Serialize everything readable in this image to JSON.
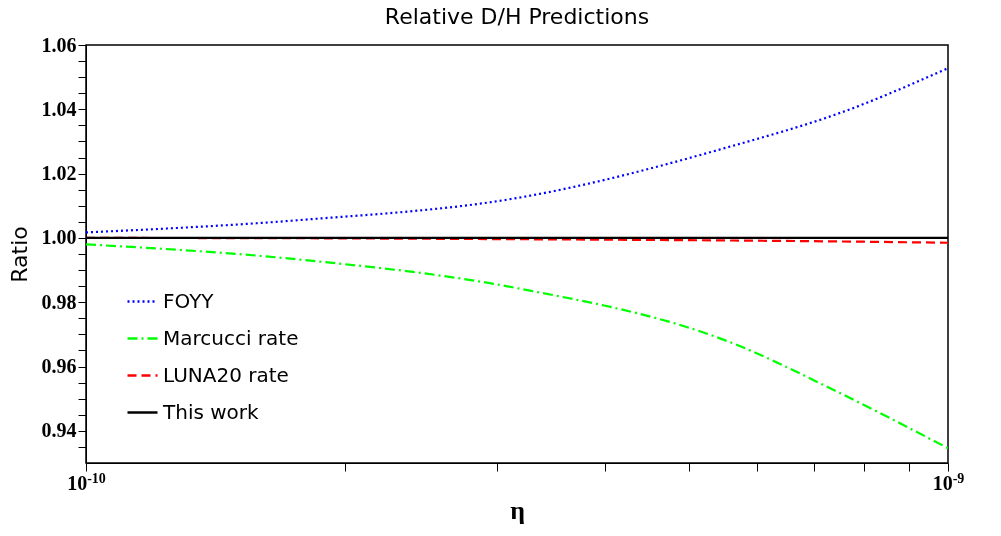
{
  "chart_data": {
    "type": "line",
    "title": "Relative D/H Predictions",
    "xlabel": "η",
    "ylabel": "Ratio",
    "log": "x",
    "grid": false,
    "legend": "bottom left",
    "xlim": [
      1e-10,
      1e-09
    ],
    "ylim": [
      0.93,
      1.06
    ],
    "xticks": [
      {
        "value": 1e-10,
        "label": "10$^{-10}$"
      },
      {
        "value": 2e-10,
        "label": null
      },
      {
        "value": 3e-10,
        "label": null
      },
      {
        "value": 4e-10,
        "label": null
      },
      {
        "value": 5e-10,
        "label": null
      },
      {
        "value": 6e-10,
        "label": null
      },
      {
        "value": 7e-10,
        "label": null
      },
      {
        "value": 8e-10,
        "label": null
      },
      {
        "value": 9e-10,
        "label": null
      },
      {
        "value": 1e-09,
        "label": "10$^{-9}$"
      }
    ],
    "yticks": [
      {
        "value": 0.935,
        "label": null
      },
      0.94,
      {
        "value": 0.945,
        "label": null
      },
      {
        "value": 0.95,
        "label": null
      },
      {
        "value": 0.955,
        "label": null
      },
      0.96,
      {
        "value": 0.965,
        "label": null
      },
      {
        "value": 0.97,
        "label": null
      },
      {
        "value": 0.975,
        "label": null
      },
      0.98,
      {
        "value": 0.985,
        "label": null
      },
      {
        "value": 0.99,
        "label": null
      },
      {
        "value": 0.995,
        "label": null
      },
      {
        "value": 1.0,
        "label": "1.00"
      },
      {
        "value": 1.005,
        "label": null
      },
      {
        "value": 1.01,
        "label": null
      },
      {
        "value": 1.015,
        "label": null
      },
      1.02,
      {
        "value": 1.025,
        "label": null
      },
      {
        "value": 1.03,
        "label": null
      },
      {
        "value": 1.035,
        "label": null
      },
      1.04,
      {
        "value": 1.045,
        "label": null
      },
      {
        "value": 1.05,
        "label": null
      },
      {
        "value": 1.055,
        "label": null
      },
      1.06
    ],
    "x": [
      1e-10,
      1.78e-10,
      3.16e-10,
      5.62e-10,
      7.5e-10,
      1e-09
    ],
    "series": [
      {
        "name": "FOYY",
        "color": "#0000ff",
        "line_style": "dotted",
        "values": [
          1.0017,
          1.0056,
          1.0124,
          1.0286,
          1.0389,
          1.0528
        ]
      },
      {
        "name": "Marcucci rate",
        "color": "#00ff00",
        "line_style": "dashdot",
        "values": [
          0.998,
          0.9932,
          0.9844,
          0.9673,
          0.9517,
          0.9346
        ]
      },
      {
        "name": "LUNA20 rate",
        "color": "#ff0000",
        "line_style": "dashed",
        "values": [
          1.0,
          0.9999,
          0.9996,
          0.9992,
          0.9989,
          0.9985
        ]
      },
      {
        "name": "This work",
        "color": "#000000",
        "line_style": "solid",
        "values": [
          1.0,
          1.0,
          1.0,
          1.0,
          1.0,
          1.0
        ]
      }
    ]
  }
}
